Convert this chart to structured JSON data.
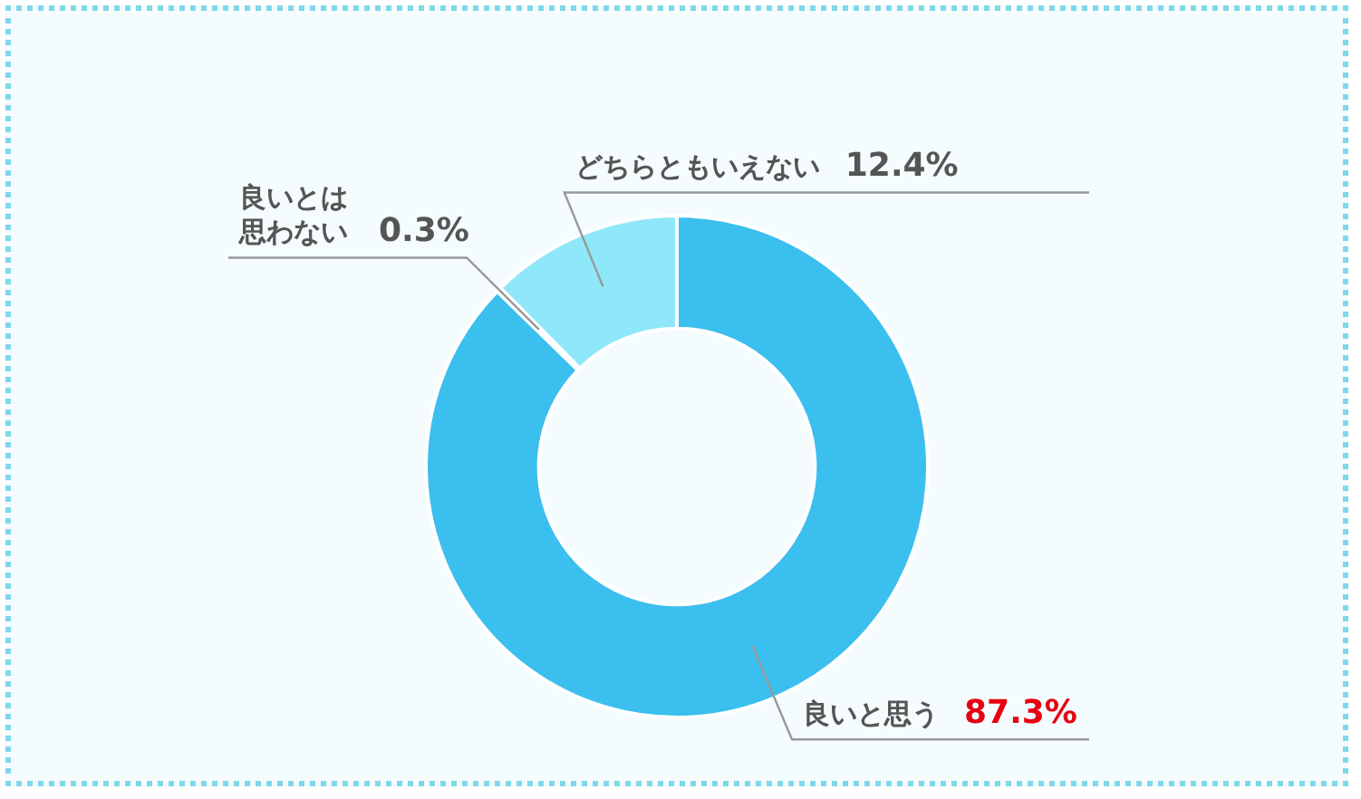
{
  "chart_data": {
    "type": "donut",
    "categories": [
      "良いと思う",
      "良いとは思わない",
      "どちらともいえない"
    ],
    "values": [
      87.3,
      0.3,
      12.4
    ],
    "colors": [
      "#3bbfee",
      "#d9d9d9",
      "#8fe8fa"
    ],
    "value_labels": [
      "87.3%",
      "0.3%",
      "12.4%"
    ],
    "legend": false
  }
}
